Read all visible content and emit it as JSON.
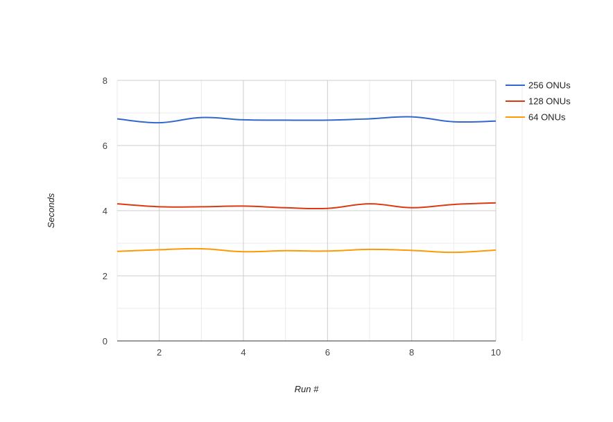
{
  "chart_data": {
    "type": "line",
    "title": "",
    "xlabel": "Run #",
    "ylabel": "Seconds",
    "x": [
      1,
      2,
      3,
      4,
      5,
      6,
      7,
      8,
      9,
      10
    ],
    "xlim": [
      1,
      10
    ],
    "xticks": [
      2,
      4,
      6,
      8,
      10
    ],
    "ylim": [
      0,
      8
    ],
    "yticks": [
      0,
      2,
      4,
      6,
      8
    ],
    "grid": true,
    "legend_position": "right",
    "series": [
      {
        "name": "256 ONUs",
        "color": "#3366cc",
        "values": [
          6.82,
          6.7,
          6.86,
          6.79,
          6.78,
          6.78,
          6.82,
          6.88,
          6.73,
          6.75
        ]
      },
      {
        "name": "128 ONUs",
        "color": "#dc3912",
        "values": [
          4.21,
          4.12,
          4.12,
          4.14,
          4.09,
          4.07,
          4.21,
          4.09,
          4.19,
          4.24
        ]
      },
      {
        "name": "64 ONUs",
        "color": "#ff9900",
        "values": [
          2.75,
          2.8,
          2.83,
          2.74,
          2.77,
          2.76,
          2.81,
          2.78,
          2.72,
          2.79
        ]
      }
    ]
  }
}
